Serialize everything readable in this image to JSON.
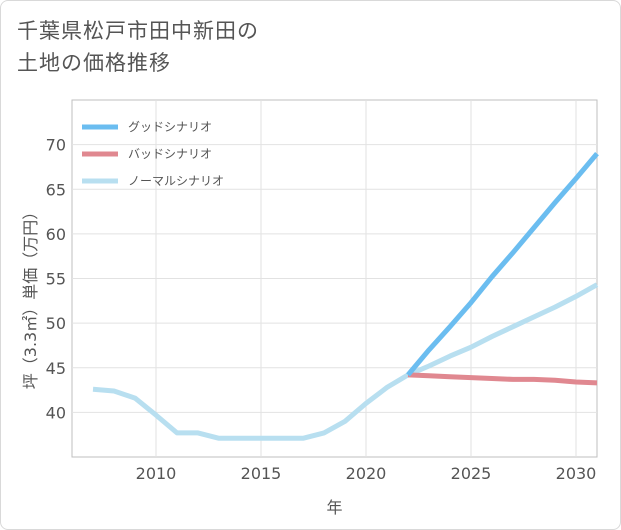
{
  "title": {
    "line1": "千葉県松戸市田中新田の",
    "line2": "土地の価格推移"
  },
  "chart_data": {
    "type": "line",
    "title": "千葉県松戸市田中新田の土地の価格推移",
    "xlabel": "年",
    "ylabel": "坪（3.3㎡）単価（万円）",
    "xlim": [
      2006,
      2031
    ],
    "ylim": [
      35,
      75
    ],
    "xticks": [
      2010,
      2015,
      2020,
      2025,
      2030
    ],
    "yticks": [
      40,
      45,
      50,
      55,
      60,
      65,
      70
    ],
    "grid": true,
    "legend_position": "top-left",
    "series": [
      {
        "name": "グッドシナリオ",
        "color": "#6bbdf0",
        "x": [
          2022,
          2023,
          2024,
          2025,
          2026,
          2027,
          2028,
          2029,
          2030,
          2031
        ],
        "values": [
          44.2,
          47.0,
          49.6,
          52.3,
          55.2,
          57.9,
          60.7,
          63.5,
          66.2,
          69.0
        ]
      },
      {
        "name": "バッドシナリオ",
        "color": "#e08890",
        "x": [
          2022,
          2023,
          2024,
          2025,
          2026,
          2027,
          2028,
          2029,
          2030,
          2031
        ],
        "values": [
          44.2,
          44.1,
          44.0,
          43.9,
          43.8,
          43.7,
          43.7,
          43.6,
          43.4,
          43.3
        ]
      },
      {
        "name": "ノーマルシナリオ",
        "color": "#b8dff0",
        "x": [
          2007,
          2008,
          2009,
          2010,
          2011,
          2012,
          2013,
          2014,
          2015,
          2016,
          2017,
          2018,
          2019,
          2020,
          2021,
          2022,
          2023,
          2024,
          2025,
          2026,
          2027,
          2028,
          2029,
          2030,
          2031
        ],
        "values": [
          42.6,
          42.4,
          41.6,
          39.7,
          37.7,
          37.7,
          37.1,
          37.1,
          37.1,
          37.1,
          37.1,
          37.7,
          39.0,
          41.0,
          42.8,
          44.2,
          45.2,
          46.3,
          47.3,
          48.5,
          49.6,
          50.7,
          51.8,
          53.0,
          54.3
        ]
      }
    ]
  }
}
